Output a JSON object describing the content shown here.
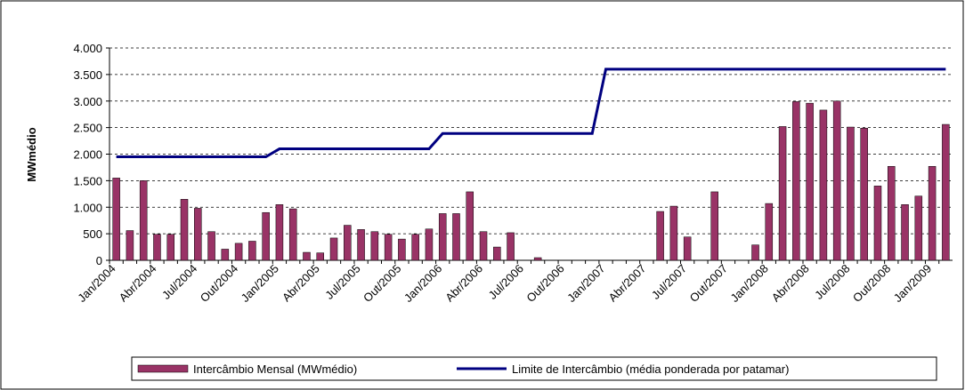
{
  "chart_data": {
    "type": "bar",
    "categories": [
      "Jan/2004",
      null,
      null,
      "Abr/2004",
      null,
      null,
      "Jul/2004",
      null,
      null,
      "Out/2004",
      null,
      null,
      "Jan/2005",
      null,
      null,
      "Abr/2005",
      null,
      null,
      "Jul/2005",
      null,
      null,
      "Out/2005",
      null,
      null,
      "Jan/2006",
      null,
      null,
      "Abr/2006",
      null,
      null,
      "Jul/2006",
      null,
      null,
      "Out/2006",
      null,
      null,
      "Jan/2007",
      null,
      null,
      "Abr/2007",
      null,
      null,
      "Jul/2007",
      null,
      null,
      "Out/2007",
      null,
      null,
      "Jan/2008",
      null,
      null,
      "Abr/2008",
      null,
      null,
      "Jul/2008",
      null,
      null,
      "Out/2008",
      null,
      null,
      "Jan/2009",
      null
    ],
    "series": [
      {
        "name": "Intercâmbio Mensal (MWmédio)",
        "type": "bar",
        "color": "#993366",
        "values": [
          1550,
          560,
          1500,
          490,
          490,
          1150,
          980,
          540,
          210,
          320,
          360,
          900,
          1050,
          970,
          150,
          140,
          420,
          660,
          580,
          540,
          490,
          400,
          490,
          590,
          880,
          880,
          1290,
          540,
          250,
          520,
          0,
          50,
          0,
          0,
          0,
          0,
          0,
          0,
          0,
          0,
          920,
          1020,
          440,
          0,
          1290,
          0,
          0,
          290,
          1070,
          2520,
          2990,
          2960,
          2830,
          3000,
          2510,
          2490,
          1400,
          1770,
          1050,
          1210,
          1770,
          2560
        ]
      },
      {
        "name": "Limite de Intercâmbio (média ponderada por patamar)",
        "type": "line",
        "color": "#000080",
        "values": [
          1950,
          1950,
          1950,
          1950,
          1950,
          1950,
          1950,
          1950,
          1950,
          1950,
          1950,
          1950,
          2100,
          2100,
          2100,
          2100,
          2100,
          2100,
          2100,
          2100,
          2100,
          2100,
          2100,
          2100,
          2390,
          2390,
          2390,
          2390,
          2390,
          2390,
          2390,
          2390,
          2390,
          2390,
          2390,
          2390,
          3600,
          3600,
          3600,
          3600,
          3600,
          3600,
          3600,
          3600,
          3600,
          3600,
          3600,
          3600,
          3600,
          3600,
          3600,
          3600,
          3600,
          3600,
          3600,
          3600,
          3600,
          3600,
          3600,
          3600,
          3600,
          3600
        ]
      }
    ],
    "y_label": "MWmédio",
    "ylim": [
      0,
      4000
    ],
    "yticks": [
      0,
      {
        "value": 500,
        "label": "500"
      },
      {
        "value": 1000,
        "label": "1.000"
      },
      {
        "value": 1500,
        "label": "1.500"
      },
      {
        "value": 2000,
        "label": "2.000"
      },
      {
        "value": 2500,
        "label": "2.500"
      },
      {
        "value": 3000,
        "label": "3.000"
      },
      {
        "value": 3500,
        "label": "3.500"
      },
      {
        "value": 4000,
        "label": "4.000"
      }
    ],
    "grid": true,
    "legend": "bottom"
  }
}
